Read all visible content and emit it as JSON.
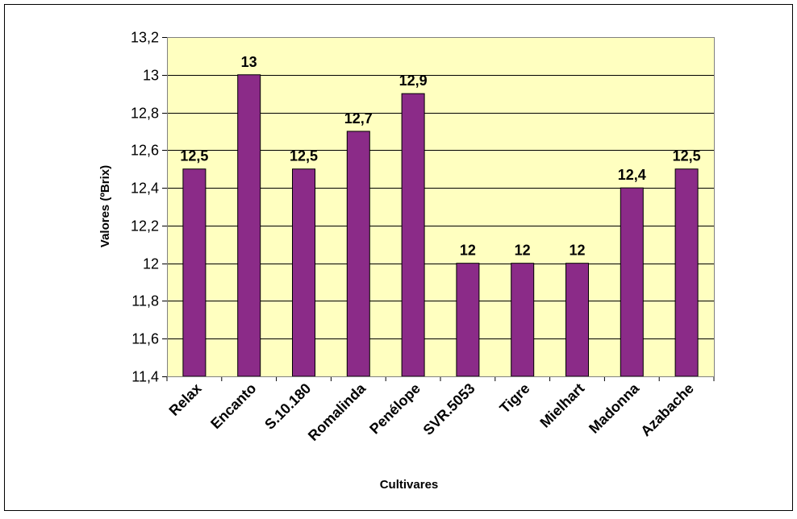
{
  "chart_data": {
    "type": "bar",
    "title": "",
    "xlabel": "Cultivares",
    "ylabel": "Valores  (ºBrix)",
    "ylim": [
      11.4,
      13.2
    ],
    "ytick_step": 0.2,
    "yticks": [
      "11,4",
      "11,6",
      "11,8",
      "12",
      "12,2",
      "12,4",
      "12,6",
      "12,8",
      "13",
      "13,2"
    ],
    "grid": true,
    "legend": "none",
    "categories": [
      "Relax",
      "Encanto",
      "S.10.180",
      "Romalinda",
      "Penélope",
      "SVR.5053",
      "Tigre",
      "Mielhart",
      "Madonna",
      "Azabache"
    ],
    "values": [
      12.5,
      13,
      12.5,
      12.7,
      12.9,
      12,
      12,
      12,
      12.4,
      12.5
    ],
    "data_labels": [
      "12,5",
      "13",
      "12,5",
      "12,7",
      "12,9",
      "12",
      "12",
      "12",
      "12,4",
      "12,5"
    ],
    "colors": {
      "bar": "#8B2B88",
      "plot_background": "#FFFFC0",
      "gridline": "#000000",
      "border": "#000000"
    }
  }
}
